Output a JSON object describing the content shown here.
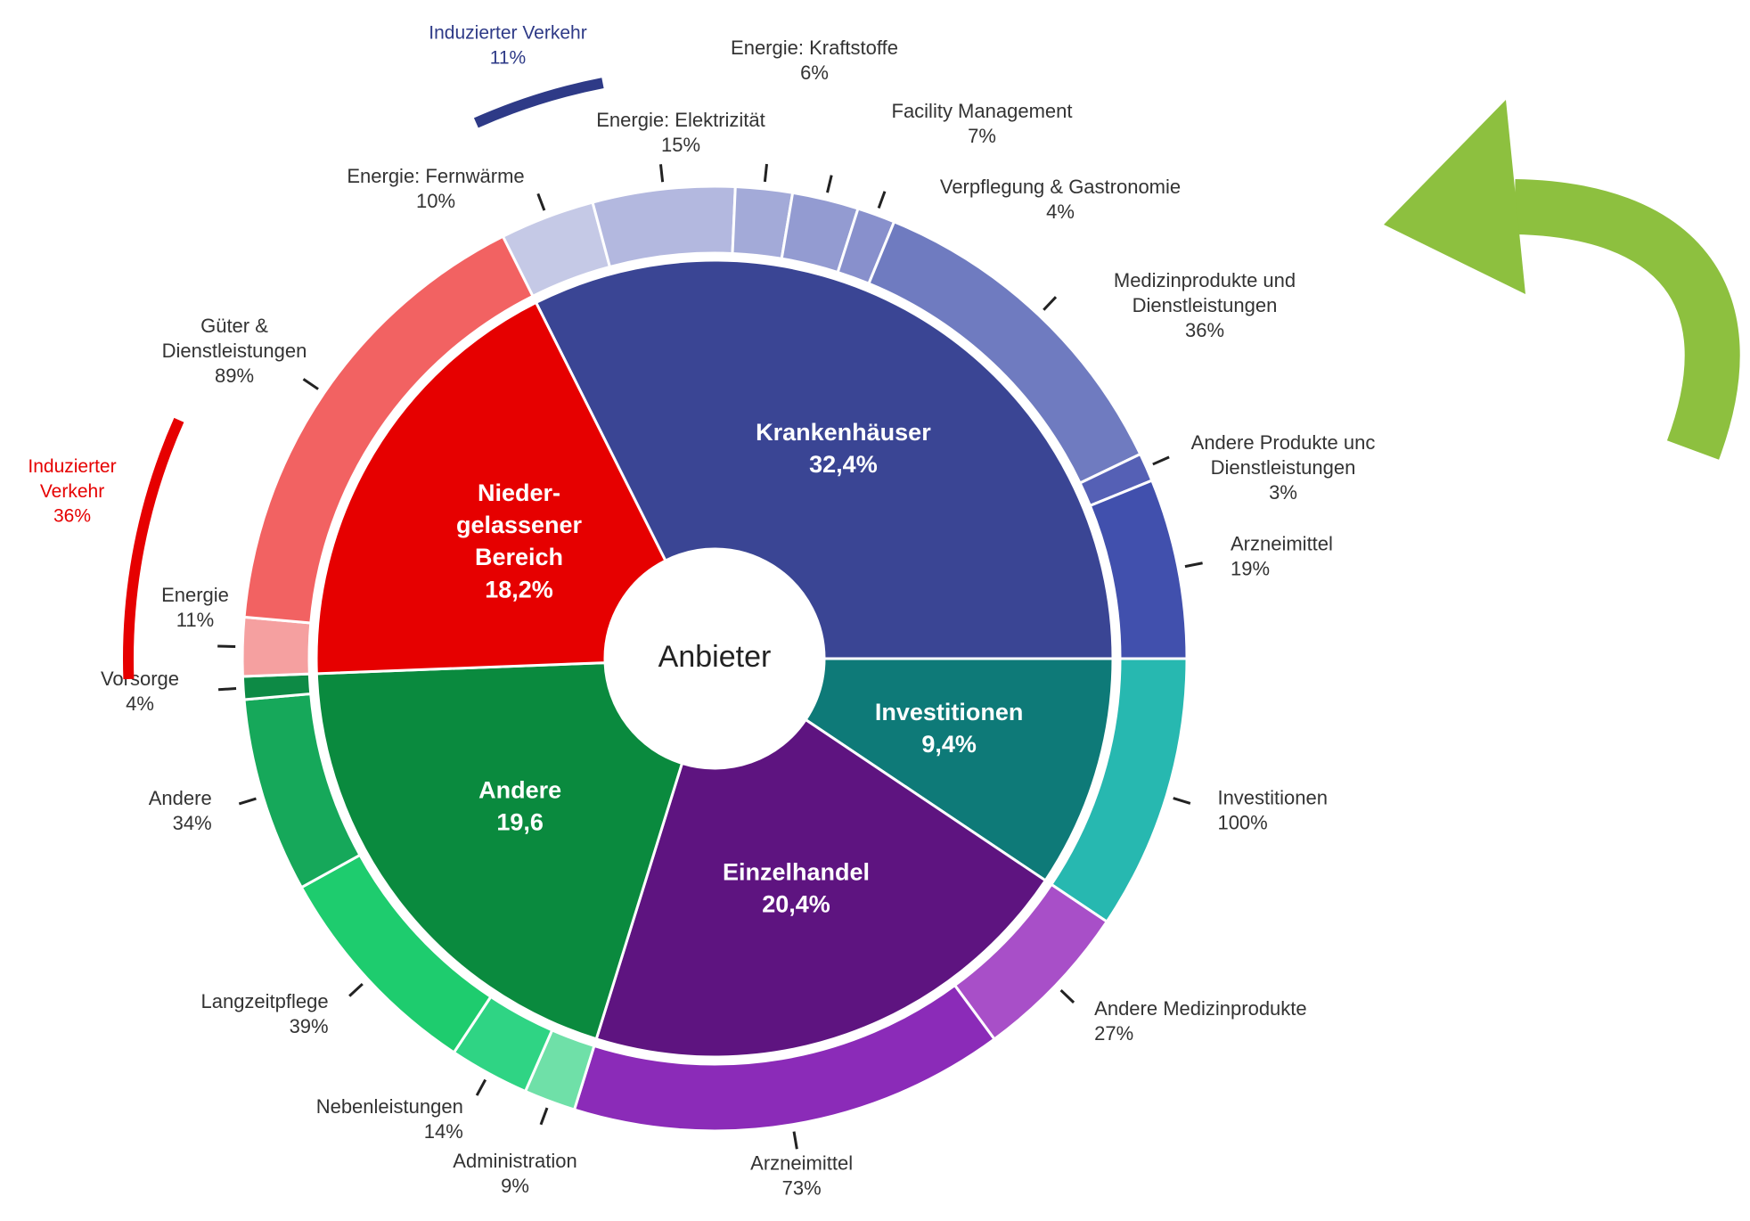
{
  "chart_data": {
    "type": "sunburst",
    "center_label": "Anbieter",
    "series": [
      {
        "name": "Krankenhäuser",
        "value": 32.4,
        "value_label": "32,4%",
        "color": "#3a4594",
        "children": [
          {
            "name": "Energie: Fernwärme",
            "value": 10,
            "value_label": "10%",
            "color": "#c5c9e6"
          },
          {
            "name": "Energie: Elektrizität",
            "value": 15,
            "value_label": "15%",
            "color": "#b3b8df"
          },
          {
            "name": "Energie: Kraftstoffe",
            "value": 6,
            "value_label": "6%",
            "color": "#a3aad8"
          },
          {
            "name": "Facility Management",
            "value": 7,
            "value_label": "7%",
            "color": "#939bd1"
          },
          {
            "name": "Verpflegung & Gastronomie",
            "value": 4,
            "value_label": "4%",
            "color": "#8890cc"
          },
          {
            "name": "Medizinprodukte und\nDienstleistungen",
            "value": 36,
            "value_label": "36%",
            "color": "#6f7bc0"
          },
          {
            "name": "Andere Produkte unc\nDienstleistungen",
            "value": 3,
            "value_label": "3%",
            "color": "#5560b5"
          },
          {
            "name": "Arzneimittel",
            "value": 19,
            "value_label": "19%",
            "color": "#4150ad"
          }
        ]
      },
      {
        "name": "Investitionen",
        "value": 9.4,
        "value_label": "9,4%",
        "color": "#0e7a78",
        "children": [
          {
            "name": "Investitionen",
            "value": 100,
            "value_label": "100%",
            "color": "#27b8b0"
          }
        ]
      },
      {
        "name": "Einzelhandel",
        "value": 20.4,
        "value_label": "20,4%",
        "color": "#5e1480",
        "children": [
          {
            "name": "Andere Medizinprodukte",
            "value": 27,
            "value_label": "27%",
            "color": "#a84fc8"
          },
          {
            "name": "Arzneimittel",
            "value": 73,
            "value_label": "73%",
            "color": "#8b2bb8"
          }
        ]
      },
      {
        "name": "Andere",
        "value": 19.6,
        "value_label": "19,6",
        "color": "#0a8a3e",
        "children": [
          {
            "name": "Administration",
            "value": 9,
            "value_label": "9%",
            "color": "#6fe0a8"
          },
          {
            "name": "Nebenleistungen",
            "value": 14,
            "value_label": "14%",
            "color": "#2fd484"
          },
          {
            "name": "Langzeitpflege",
            "value": 39,
            "value_label": "39%",
            "color": "#1ecc6e"
          },
          {
            "name": "Andere",
            "value": 34,
            "value_label": "34%",
            "color": "#16a85a"
          },
          {
            "name": "Vorsorge",
            "value": 4,
            "value_label": "4%",
            "color": "#0d8a45"
          }
        ]
      },
      {
        "name": "Nieder-\ngelassener\nBereich",
        "value": 18.2,
        "value_label": "18,2%",
        "color": "#e60000",
        "children": [
          {
            "name": "Energie",
            "value": 11,
            "value_label": "11%",
            "color": "#f5a0a0"
          },
          {
            "name": "Güter &\nDienstleistungen",
            "value": 89,
            "value_label": "89%",
            "color": "#f26262"
          }
        ]
      }
    ],
    "annotations": [
      {
        "label": "Induzierter Verkehr",
        "value": 11,
        "value_label": "11%",
        "color": "#2e3a87"
      },
      {
        "label": "Induzierter\nVerkehr",
        "value": 36,
        "value_label": "36%",
        "color": "#e60000"
      }
    ]
  }
}
